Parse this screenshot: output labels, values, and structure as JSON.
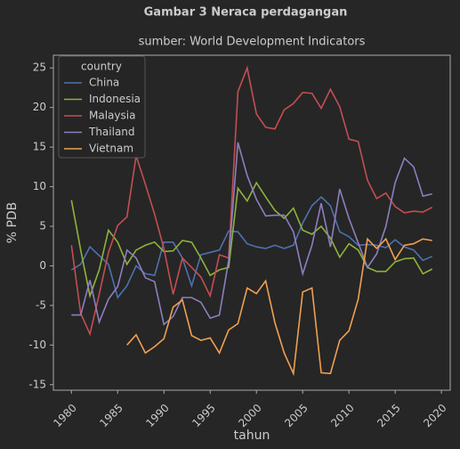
{
  "chart_data": {
    "type": "line",
    "title": "Gambar 3 Neraca perdagangan",
    "subtitle": "sumber: World Development Indicators",
    "x_label": "tahun",
    "y_label": "% PDB",
    "x": [
      1980,
      1981,
      1982,
      1983,
      1984,
      1985,
      1986,
      1987,
      1988,
      1989,
      1990,
      1991,
      1992,
      1993,
      1994,
      1995,
      1996,
      1997,
      1998,
      1999,
      2000,
      2001,
      2002,
      2003,
      2004,
      2005,
      2006,
      2007,
      2008,
      2009,
      2010,
      2011,
      2012,
      2013,
      2014,
      2015,
      2016,
      2017,
      2018,
      2019
    ],
    "xlim": [
      1978.05,
      2020.95
    ],
    "xticks": [
      1980,
      1985,
      1990,
      1995,
      2000,
      2005,
      2010,
      2015,
      2020
    ],
    "ylim": [
      -15.7,
      26.6
    ],
    "yticks": [
      -15,
      -10,
      -5,
      0,
      5,
      10,
      15,
      20,
      25
    ],
    "legend_title": "country",
    "legend_position": "upper left",
    "grid": false,
    "series": [
      {
        "name": "China",
        "color": "#4c72b0",
        "values": [
          -0.5,
          0.2,
          2.4,
          1.3,
          0.2,
          -4.0,
          -2.5,
          0.0,
          -1.0,
          -1.2,
          3.0,
          3.0,
          1.0,
          -2.5,
          1.4,
          1.7,
          2.0,
          4.4,
          4.3,
          2.8,
          2.4,
          2.2,
          2.6,
          2.2,
          2.6,
          5.4,
          7.6,
          8.7,
          7.6,
          4.3,
          3.7,
          2.6,
          2.7,
          2.6,
          2.3,
          3.3,
          2.4,
          2.0,
          0.7,
          1.2
        ]
      },
      {
        "name": "Indonesia",
        "color": "#8eb33b",
        "values": [
          8.3,
          2.0,
          -3.8,
          -0.5,
          4.5,
          3.0,
          0.2,
          2.0,
          2.6,
          3.0,
          1.8,
          1.9,
          3.2,
          3.0,
          1.0,
          -1.2,
          -0.5,
          -0.2,
          9.8,
          8.2,
          10.5,
          8.7,
          7.0,
          6.0,
          7.3,
          4.5,
          4.0,
          5.0,
          3.5,
          1.1,
          2.8,
          2.0,
          -0.2,
          -0.7,
          -0.7,
          0.5,
          0.9,
          1.0,
          -1.0,
          -0.4
        ]
      },
      {
        "name": "Malaysia",
        "color": "#c44e52",
        "values": [
          2.6,
          -6.0,
          -8.6,
          -3.6,
          1.7,
          5.1,
          6.2,
          13.9,
          10.3,
          6.5,
          2.2,
          -3.6,
          1.0,
          -0.2,
          -1.4,
          -3.8,
          1.4,
          1.0,
          22.0,
          25.0,
          19.2,
          17.5,
          17.3,
          19.7,
          20.5,
          21.9,
          21.8,
          19.9,
          22.3,
          20.1,
          16.0,
          15.7,
          10.8,
          8.5,
          9.2,
          7.5,
          6.7,
          6.9,
          6.8,
          7.4
        ]
      },
      {
        "name": "Thailand",
        "color": "#8c7fbf",
        "values": [
          -6.2,
          -6.2,
          -1.8,
          -7.1,
          -4.2,
          -2.6,
          2.0,
          1.0,
          -1.5,
          -2.0,
          -7.4,
          -6.4,
          -4.0,
          -4.0,
          -4.6,
          -6.6,
          -6.2,
          0.7,
          15.6,
          11.4,
          8.4,
          6.3,
          6.4,
          6.4,
          4.3,
          -1.0,
          2.6,
          7.9,
          2.4,
          9.7,
          6.0,
          2.9,
          -0.2,
          1.5,
          5.0,
          10.5,
          13.6,
          12.5,
          8.8,
          9.1
        ]
      },
      {
        "name": "Vietnam",
        "color": "#f0a050",
        "values": [
          null,
          null,
          null,
          null,
          null,
          null,
          -10.0,
          -8.7,
          -11.0,
          -10.2,
          -9.2,
          -5.2,
          -4.3,
          -8.8,
          -9.4,
          -9.1,
          -11.0,
          -8.1,
          -7.3,
          -2.8,
          -3.5,
          -1.9,
          -7.2,
          -11.0,
          -13.6,
          -3.3,
          -2.8,
          -13.5,
          -13.6,
          -9.4,
          -8.2,
          -4.2,
          3.4,
          2.2,
          3.4,
          0.8,
          2.6,
          2.8,
          3.4,
          3.2
        ]
      }
    ]
  }
}
